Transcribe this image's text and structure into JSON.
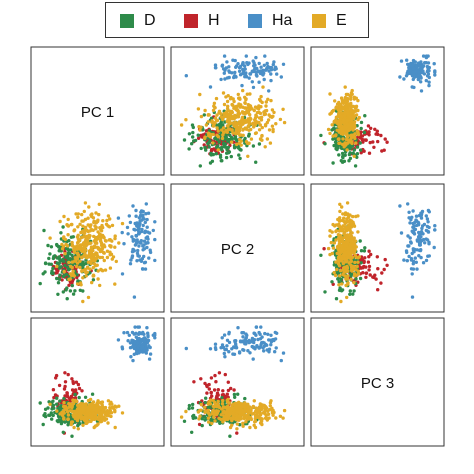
{
  "legend": [
    {
      "label": "D",
      "color": "#2e8b4a"
    },
    {
      "label": "H",
      "color": "#c0242b"
    },
    {
      "label": "Ha",
      "color": "#4a8fc7"
    },
    {
      "label": "E",
      "color": "#e3aa26"
    }
  ],
  "chart_data": {
    "type": "scatter",
    "layout": "pairs-matrix",
    "variables": [
      "PC 1",
      "PC 2",
      "PC 3"
    ],
    "axis_range": [
      -1,
      1
    ],
    "grid": false,
    "legend_position": "top",
    "series": [
      {
        "name": "D",
        "color": "#2e8b4a",
        "centroid": {
          "PC 1": -0.45,
          "PC 2": -0.25,
          "PC 3": -0.55
        },
        "spread": {
          "PC 1": 0.22,
          "PC 2": 0.25,
          "PC 3": 0.12
        }
      },
      {
        "name": "H",
        "color": "#c0242b",
        "centroid": {
          "PC 1": -0.5,
          "PC 2": -0.35,
          "PC 3": -0.35
        },
        "spread": {
          "PC 1": 0.12,
          "PC 2": 0.15,
          "PC 3": 0.22
        }
      },
      {
        "name": "Ha",
        "color": "#4a8fc7",
        "centroid": {
          "PC 1": 0.7,
          "PC 2": 0.25,
          "PC 3": 0.7
        },
        "spread": {
          "PC 1": 0.12,
          "PC 2": 0.28,
          "PC 3": 0.12
        }
      },
      {
        "name": "E",
        "color": "#e3aa26",
        "centroid": {
          "PC 1": -0.15,
          "PC 2": 0.05,
          "PC 3": -0.55
        },
        "spread": {
          "PC 1": 0.22,
          "PC 2": 0.32,
          "PC 3": 0.1
        }
      }
    ]
  }
}
